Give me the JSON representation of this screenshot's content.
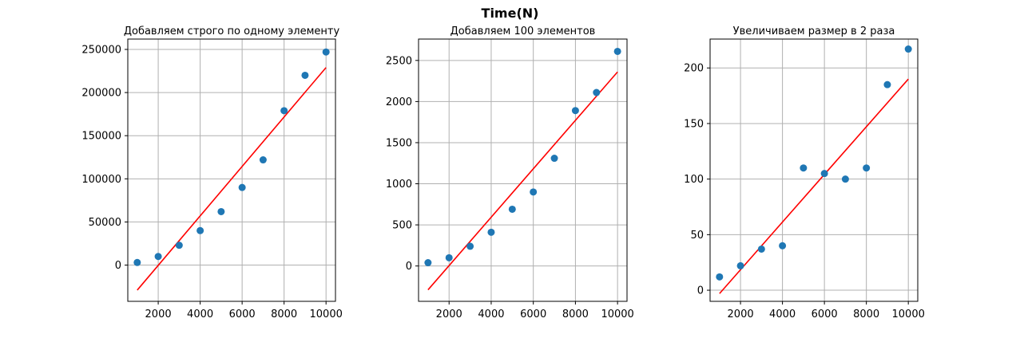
{
  "figure": {
    "title": "Time(N)"
  },
  "chart_data": [
    {
      "type": "scatter",
      "title": "Добавляем строго по одному элементу",
      "xlim": [
        550,
        10450
      ],
      "ylim": [
        -42000,
        262000
      ],
      "xticks": [
        2000,
        4000,
        6000,
        8000,
        10000
      ],
      "yticks": [
        0,
        50000,
        100000,
        150000,
        200000,
        250000
      ],
      "grid": true,
      "points": {
        "x": [
          1000,
          2000,
          3000,
          4000,
          5000,
          6000,
          7000,
          8000,
          9000,
          10000
        ],
        "y": [
          3000,
          10000,
          23000,
          40000,
          62000,
          90000,
          122000,
          179000,
          220000,
          247000
        ]
      },
      "fit_line": {
        "x": [
          1000,
          10000
        ],
        "y": [
          -29000,
          229000
        ]
      },
      "colors": {
        "points": "#1f77b4",
        "fit": "#ff0000"
      }
    },
    {
      "type": "scatter",
      "title": "Добавляем 100 элементов",
      "xlim": [
        550,
        10450
      ],
      "ylim": [
        -430,
        2760
      ],
      "xticks": [
        2000,
        4000,
        6000,
        8000,
        10000
      ],
      "yticks": [
        0,
        500,
        1000,
        1500,
        2000,
        2500
      ],
      "grid": true,
      "points": {
        "x": [
          1000,
          2000,
          3000,
          4000,
          5000,
          6000,
          7000,
          8000,
          9000,
          10000
        ],
        "y": [
          40,
          100,
          240,
          410,
          690,
          900,
          1310,
          1890,
          2110,
          2610
        ]
      },
      "fit_line": {
        "x": [
          1000,
          10000
        ],
        "y": [
          -290,
          2360
        ]
      },
      "colors": {
        "points": "#1f77b4",
        "fit": "#ff0000"
      }
    },
    {
      "type": "scatter",
      "title": "Увеличиваем размер в 2 раза",
      "xlim": [
        550,
        10450
      ],
      "ylim": [
        -10,
        226
      ],
      "xticks": [
        2000,
        4000,
        6000,
        8000,
        10000
      ],
      "yticks": [
        0,
        50,
        100,
        150,
        200
      ],
      "grid": true,
      "points": {
        "x": [
          1000,
          2000,
          3000,
          4000,
          5000,
          6000,
          7000,
          8000,
          9000,
          10000
        ],
        "y": [
          12,
          22,
          37,
          40,
          110,
          105,
          100,
          110,
          185,
          217
        ]
      },
      "fit_line": {
        "x": [
          1000,
          10000
        ],
        "y": [
          -3,
          190
        ]
      },
      "colors": {
        "points": "#1f77b4",
        "fit": "#ff0000"
      }
    }
  ]
}
